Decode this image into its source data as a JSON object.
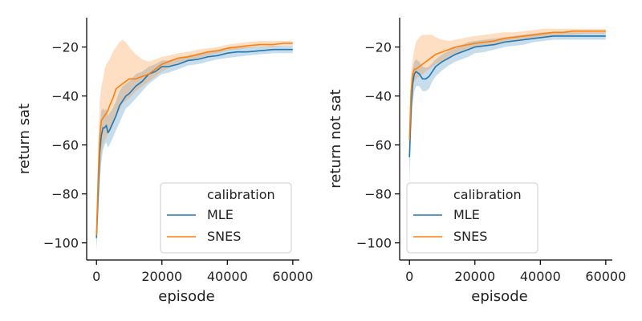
{
  "chart_data": [
    {
      "type": "line",
      "title": "",
      "xlabel": "episode",
      "ylabel": "return sat",
      "xlim": [
        -3000,
        62000
      ],
      "ylim": [
        -107,
        -8
      ],
      "xticks": [
        0,
        20000,
        40000,
        60000
      ],
      "xtick_labels": [
        "0",
        "20000",
        "40000",
        "60000"
      ],
      "yticks": [
        -100,
        -80,
        -60,
        -40,
        -20
      ],
      "ytick_labels": [
        "−100",
        "−80",
        "−60",
        "−40",
        "−20"
      ],
      "grid": false,
      "legend": {
        "title": "calibration",
        "placement": "lower-right"
      },
      "x": [
        0,
        500,
        1000,
        1500,
        2000,
        2500,
        3000,
        3500,
        4000,
        5000,
        6000,
        7000,
        8000,
        9000,
        10000,
        12000,
        14000,
        16000,
        18000,
        20000,
        22000,
        25000,
        28000,
        31000,
        34000,
        37000,
        40000,
        43000,
        46000,
        50000,
        54000,
        57000,
        60000
      ],
      "series": [
        {
          "name": "MLE",
          "color": "#1f77b4",
          "values": [
            -98,
            -80,
            -63,
            -56,
            -53,
            -53,
            -52,
            -55,
            -54,
            -51,
            -48,
            -44,
            -42,
            -40,
            -39,
            -36,
            -34,
            -31,
            -30,
            -28,
            -28,
            -27,
            -25.5,
            -25,
            -24,
            -23.5,
            -22.5,
            -22,
            -22,
            -21.5,
            -21,
            -21,
            -21
          ],
          "lower": [
            -103,
            -90,
            -76,
            -67,
            -62,
            -60,
            -59,
            -61,
            -60,
            -57,
            -54,
            -51,
            -48,
            -45,
            -44,
            -41,
            -38,
            -35,
            -33,
            -31,
            -30.5,
            -29,
            -27.5,
            -27,
            -26,
            -25,
            -24.5,
            -24,
            -23.5,
            -23,
            -22.5,
            -22.5,
            -22.5
          ],
          "upper": [
            -92,
            -68,
            -52,
            -46,
            -45,
            -46,
            -45,
            -48,
            -47,
            -45,
            -42,
            -38,
            -36,
            -35,
            -34,
            -31,
            -30,
            -28,
            -27,
            -25.5,
            -25.5,
            -24.5,
            -23.5,
            -23,
            -22,
            -21.5,
            -20.5,
            -20,
            -20,
            -19.8,
            -19.5,
            -19.5,
            -19.5
          ]
        },
        {
          "name": "SNES",
          "color": "#ff7f0e",
          "values": [
            -97,
            -74,
            -57,
            -50,
            -49,
            -48,
            -47,
            -46,
            -44,
            -41,
            -37,
            -36,
            -35,
            -34,
            -33,
            -33,
            -32,
            -31,
            -29,
            -27,
            -26,
            -24.5,
            -24,
            -23,
            -22,
            -21.5,
            -20.5,
            -20,
            -19.5,
            -19,
            -19,
            -18.5,
            -18.5
          ],
          "lower": [
            -103,
            -86,
            -72,
            -64,
            -60,
            -58,
            -57,
            -55,
            -55,
            -52,
            -48,
            -46,
            -43,
            -42,
            -41,
            -38,
            -36,
            -34,
            -32,
            -30,
            -28.5,
            -26.5,
            -25.5,
            -24.5,
            -23.5,
            -22.5,
            -21.5,
            -21,
            -20.5,
            -20,
            -20,
            -19.5,
            -19.5
          ],
          "upper": [
            -92,
            -60,
            -42,
            -36,
            -33,
            -29,
            -27,
            -26,
            -25,
            -22,
            -20,
            -18,
            -17,
            -18,
            -20,
            -23,
            -25,
            -26,
            -25,
            -24,
            -23.5,
            -22.5,
            -22,
            -21,
            -20.5,
            -20,
            -19,
            -18.5,
            -18,
            -17.5,
            -17.5,
            -17.5,
            -17.5
          ]
        }
      ]
    },
    {
      "type": "line",
      "title": "",
      "xlabel": "episode",
      "ylabel": "return not sat",
      "xlim": [
        -3000,
        62000
      ],
      "ylim": [
        -107,
        -8
      ],
      "xticks": [
        0,
        20000,
        40000,
        60000
      ],
      "xtick_labels": [
        "0",
        "20000",
        "40000",
        "60000"
      ],
      "yticks": [
        -100,
        -80,
        -60,
        -40,
        -20
      ],
      "ytick_labels": [
        "−100",
        "−80",
        "−60",
        "−40",
        "−20"
      ],
      "grid": false,
      "legend": {
        "title": "calibration",
        "placement": "lower-left"
      },
      "x": [
        0,
        500,
        1000,
        1500,
        2000,
        3000,
        4000,
        5000,
        6000,
        7000,
        8000,
        10000,
        12000,
        14000,
        16000,
        18000,
        20000,
        23000,
        26000,
        29000,
        32000,
        35000,
        38000,
        41000,
        44000,
        47000,
        50000,
        54000,
        57000,
        60000
      ],
      "series": [
        {
          "name": "MLE",
          "color": "#1f77b4",
          "values": [
            -65,
            -45,
            -35,
            -31,
            -30,
            -31,
            -33,
            -33,
            -32,
            -30,
            -28,
            -26,
            -24.5,
            -23,
            -22,
            -21,
            -20,
            -19.5,
            -19,
            -18,
            -17.5,
            -17,
            -16.5,
            -16,
            -15.5,
            -15.5,
            -15.5,
            -15.5,
            -15.5,
            -15.5
          ],
          "lower": [
            -76,
            -55,
            -43,
            -38,
            -36,
            -36,
            -38,
            -38,
            -37,
            -34,
            -32,
            -29.5,
            -27.5,
            -26,
            -25,
            -24,
            -22.5,
            -22,
            -21,
            -20,
            -19.5,
            -19,
            -18,
            -17.5,
            -17,
            -17,
            -17,
            -17,
            -17,
            -17
          ],
          "upper": [
            -56,
            -37,
            -29,
            -26,
            -25,
            -26,
            -28,
            -28.5,
            -28,
            -26.5,
            -25,
            -23,
            -21.5,
            -20,
            -19,
            -18,
            -17.5,
            -17,
            -16.5,
            -16,
            -15.5,
            -15,
            -14.5,
            -14,
            -14,
            -14,
            -14,
            -14,
            -14,
            -14
          ]
        },
        {
          "name": "SNES",
          "color": "#ff7f0e",
          "values": [
            -58,
            -38,
            -31,
            -29,
            -29,
            -28,
            -27,
            -26,
            -25,
            -24,
            -23,
            -22,
            -21,
            -20,
            -19.5,
            -19,
            -18.5,
            -18,
            -17.5,
            -16.5,
            -16,
            -15.5,
            -15,
            -14.5,
            -14,
            -14,
            -13.5,
            -13.5,
            -13.5,
            -13.5
          ],
          "lower": [
            -68,
            -47,
            -37,
            -34,
            -33,
            -32,
            -31,
            -30,
            -29,
            -28,
            -27,
            -26,
            -25,
            -23,
            -22,
            -21,
            -20,
            -19.5,
            -19,
            -18,
            -17.5,
            -17,
            -16.5,
            -16,
            -15.5,
            -15,
            -15,
            -14.5,
            -14.5,
            -14.5
          ],
          "upper": [
            -48,
            -30,
            -25,
            -21,
            -18,
            -16,
            -15,
            -15,
            -15,
            -15,
            -16,
            -17,
            -17.5,
            -17,
            -16.5,
            -16,
            -15.5,
            -15,
            -14.5,
            -14,
            -14,
            -13.5,
            -13,
            -12.5,
            -12.5,
            -12.5,
            -12.5,
            -12.5,
            -12.5,
            -12.5
          ]
        }
      ]
    }
  ]
}
